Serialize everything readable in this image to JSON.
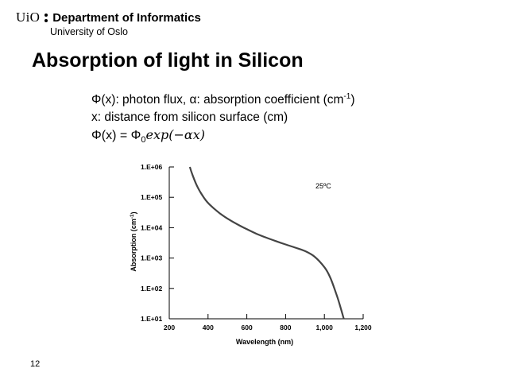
{
  "header": {
    "org_short": "UiO",
    "department": "Department of Informatics",
    "university": "University of Oslo"
  },
  "slide": {
    "title": "Absorption of light in Silicon",
    "line1_pre": "Φ(x): photon flux, α: absorption coefficient (cm",
    "line1_sup": "-1",
    "line1_post": ")",
    "line2": "x: distance from silicon surface (cm)",
    "formula_lhs": "Φ(x) = Φ",
    "formula_sub": "0",
    "formula_rhs": "exp(−αx)",
    "page_number": "12"
  },
  "chart_data": {
    "type": "line",
    "xlabel": "Wavelength  (nm)",
    "ylabel": "Absorption  (cm",
    "ylabel_sup": "-1",
    "ylabel_close": ")",
    "annotation": "25ºC",
    "y_scale": "log",
    "xlim": [
      200,
      1200
    ],
    "ylim": [
      10,
      1000000
    ],
    "x_ticks": [
      200,
      400,
      600,
      800,
      1000,
      1200
    ],
    "x_tick_labels": [
      "200",
      "400",
      "600",
      "800",
      "1,000",
      "1,200"
    ],
    "y_ticks": [
      10,
      100,
      1000,
      10000,
      100000,
      1000000
    ],
    "y_tick_labels": [
      "1.E+01",
      "1.E+02",
      "1.E+03",
      "1.E+04",
      "1.E+05",
      "1.E+06"
    ],
    "grid": false,
    "series": [
      {
        "x": [
          300,
          320,
          340,
          360,
          380,
          400,
          430,
          460,
          500,
          550,
          600,
          650,
          700,
          750,
          800,
          850,
          900,
          950,
          1000,
          1030,
          1060,
          1080,
          1100
        ],
        "y": [
          1300000,
          540000,
          260000,
          150000,
          95000,
          65000,
          43000,
          30000,
          20000,
          13000,
          8900,
          6300,
          4700,
          3600,
          2800,
          2200,
          1700,
          1100,
          500,
          230,
          70,
          28,
          10
        ]
      }
    ]
  }
}
